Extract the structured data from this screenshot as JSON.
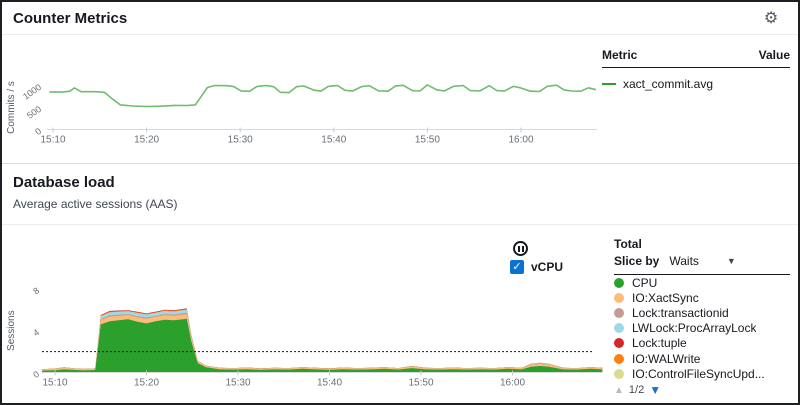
{
  "counter_section": {
    "title": "Counter Metrics",
    "gear_icon": "settings-gear",
    "table": {
      "col_metric": "Metric",
      "col_value": "Value",
      "rows": [
        {
          "label": "xact_commit.avg",
          "color": "#2ca02c"
        }
      ]
    }
  },
  "load_section": {
    "title": "Database load",
    "subtitle": "Average active sessions (AAS)",
    "pause_icon": "pause",
    "vcpu_checkbox_checked": true,
    "vcpu_check_glyph": "✓",
    "vcpu_label": "vCPU",
    "legend": {
      "total_label": "Total",
      "slice_by_label": "Slice by",
      "slice_value": "Waits",
      "caret": "▼",
      "items": [
        {
          "label": "CPU",
          "color": "#2ca02c"
        },
        {
          "label": "IO:XactSync",
          "color": "#ffbb78"
        },
        {
          "label": "Lock:transactionid",
          "color": "#c49c94"
        },
        {
          "label": "LWLock:ProcArrayLock",
          "color": "#9edae5"
        },
        {
          "label": "Lock:tuple",
          "color": "#d62728"
        },
        {
          "label": "IO:WALWrite",
          "color": "#ff7f0e"
        },
        {
          "label": "IO:ControlFileSyncUpd...",
          "color": "#dbdb8d"
        }
      ],
      "pager": {
        "up": "▲",
        "page": "1/2",
        "down": "▼"
      }
    }
  },
  "chart_data": [
    {
      "type": "line",
      "title": "Counter Metrics",
      "ylabel": "Commits / s",
      "ylim": [
        0,
        1250
      ],
      "y_ticks": [
        0,
        500,
        1000
      ],
      "x_tick_minutes": [
        10,
        20,
        30,
        40,
        50,
        60
      ],
      "x_tick_labels": [
        "15:10",
        "15:20",
        "15:30",
        "15:40",
        "15:50",
        "16:00"
      ],
      "grid": false,
      "legend_position": "right-table",
      "series": [
        {
          "name": "xact_commit.avg",
          "color": "#6fbc6f",
          "x": [
            9.6,
            11,
            11.8,
            12.3,
            13,
            14.5,
            15.5,
            16.3,
            17.2,
            18.5,
            20,
            21.5,
            23,
            24.3,
            25.2,
            25.8,
            26.5,
            27.3,
            28.6,
            29.3,
            30.1,
            31,
            31.8,
            32.8,
            33.6,
            34.3,
            35.2,
            36,
            36.8,
            37.8,
            38.6,
            39.4,
            40.4,
            41.2,
            42,
            43,
            43.8,
            44.8,
            45.8,
            46.6,
            47.4,
            48.4,
            49.2,
            50,
            51,
            51.8,
            52.8,
            53.8,
            54.6,
            55.6,
            56.6,
            57.4,
            58.2,
            59.2,
            60,
            61,
            62,
            62.8,
            63.8,
            64.6,
            65.4,
            66.4,
            67.2,
            68
          ],
          "values": [
            855,
            850,
            870,
            945,
            860,
            858,
            845,
            700,
            560,
            535,
            522,
            530,
            548,
            545,
            558,
            740,
            955,
            1000,
            995,
            975,
            878,
            868,
            980,
            1000,
            970,
            845,
            838,
            972,
            988,
            900,
            870,
            980,
            1000,
            890,
            876,
            978,
            993,
            878,
            870,
            992,
            1005,
            883,
            876,
            1013,
            903,
            876,
            982,
            1000,
            883,
            876,
            996,
            886,
            873,
            982,
            943,
            870,
            866,
            982,
            1006,
            900,
            876,
            870,
            948,
            905
          ]
        }
      ]
    },
    {
      "type": "area",
      "title": "Database load",
      "ylabel": "Sessions",
      "ylim": [
        0,
        9.6
      ],
      "y_ticks": [
        0,
        4,
        8
      ],
      "x_tick_minutes": [
        10,
        20,
        30,
        40,
        50,
        60
      ],
      "x_tick_labels": [
        "15:10",
        "15:20",
        "15:30",
        "15:40",
        "15:50",
        "16:00"
      ],
      "grid": false,
      "stacked": true,
      "overlay_line": {
        "name": "vCPU",
        "value": 2,
        "style": "dashed",
        "color": "#16191f"
      },
      "x": [
        8.6,
        10,
        11,
        12,
        13,
        13.8,
        14.4,
        15,
        16,
        17,
        18,
        19,
        20,
        21,
        22,
        23,
        24,
        24.4,
        24.9,
        25.6,
        26.5,
        28,
        29.5,
        31,
        32.5,
        34,
        35.5,
        37,
        38.5,
        40,
        41.5,
        43,
        44.5,
        46,
        47.5,
        49,
        50.5,
        52,
        53.5,
        55,
        56.5,
        58,
        59.5,
        61,
        62,
        63,
        64,
        65.5,
        67,
        68.5,
        69.8
      ],
      "series": [
        {
          "name": "CPU",
          "color": "#2ca02c",
          "values": [
            0.18,
            0.22,
            0.3,
            0.25,
            0.2,
            0.22,
            0.25,
            4.6,
            4.9,
            5.0,
            5.1,
            4.85,
            4.7,
            4.9,
            5.05,
            5.0,
            5.1,
            5.15,
            3.0,
            0.9,
            0.5,
            0.3,
            0.28,
            0.32,
            0.25,
            0.3,
            0.28,
            0.35,
            0.3,
            0.25,
            0.32,
            0.28,
            0.3,
            0.35,
            0.28,
            0.42,
            0.3,
            0.28,
            0.32,
            0.28,
            0.3,
            0.28,
            0.35,
            0.3,
            0.55,
            0.62,
            0.55,
            0.3,
            0.28,
            0.35,
            0.3
          ]
        },
        {
          "name": "IO:XactSync",
          "color": "#ffbb78",
          "values": [
            0.1,
            0.12,
            0.15,
            0.12,
            0.1,
            0.1,
            0.12,
            0.42,
            0.45,
            0.42,
            0.4,
            0.42,
            0.45,
            0.42,
            0.44,
            0.42,
            0.45,
            0.45,
            0.3,
            0.15,
            0.12,
            0.12,
            0.1,
            0.12,
            0.1,
            0.12,
            0.1,
            0.13,
            0.11,
            0.1,
            0.12,
            0.1,
            0.11,
            0.13,
            0.1,
            0.15,
            0.11,
            0.1,
            0.12,
            0.1,
            0.11,
            0.1,
            0.13,
            0.12,
            0.18,
            0.2,
            0.18,
            0.11,
            0.1,
            0.13,
            0.11
          ]
        },
        {
          "name": "Lock:transactionid",
          "color": "#c49c94",
          "values": [
            0,
            0,
            0,
            0,
            0,
            0,
            0,
            0.1,
            0.12,
            0.12,
            0.1,
            0.12,
            0.12,
            0.1,
            0.12,
            0.12,
            0.12,
            0.12,
            0.08,
            0.02,
            0,
            0,
            0,
            0,
            0,
            0,
            0,
            0,
            0,
            0,
            0,
            0,
            0,
            0,
            0,
            0,
            0,
            0,
            0,
            0,
            0,
            0,
            0,
            0,
            0.02,
            0.03,
            0.02,
            0,
            0,
            0,
            0
          ]
        },
        {
          "name": "LWLock:ProcArrayLock",
          "color": "#9edae5",
          "values": [
            0.02,
            0.02,
            0.03,
            0.02,
            0.02,
            0.02,
            0.02,
            0.28,
            0.3,
            0.28,
            0.26,
            0.3,
            0.28,
            0.3,
            0.28,
            0.3,
            0.3,
            0.3,
            0.18,
            0.04,
            0.02,
            0.02,
            0.02,
            0.02,
            0.02,
            0.02,
            0.02,
            0.02,
            0.02,
            0.02,
            0.02,
            0.02,
            0.02,
            0.02,
            0.02,
            0.02,
            0.02,
            0.02,
            0.02,
            0.02,
            0.02,
            0.02,
            0.02,
            0.02,
            0.04,
            0.05,
            0.04,
            0.02,
            0.02,
            0.02,
            0.02
          ]
        },
        {
          "name": "IO:WALWrite",
          "color": "#ff7f0e",
          "values": [
            0.02,
            0.02,
            0.02,
            0.02,
            0.02,
            0.02,
            0.02,
            0.05,
            0.06,
            0.06,
            0.05,
            0.06,
            0.06,
            0.05,
            0.06,
            0.06,
            0.06,
            0.05,
            0.03,
            0.02,
            0.02,
            0.02,
            0.02,
            0.02,
            0.02,
            0.02,
            0.02,
            0.02,
            0.02,
            0.02,
            0.02,
            0.02,
            0.02,
            0.02,
            0.02,
            0.03,
            0.02,
            0.02,
            0.02,
            0.02,
            0.02,
            0.02,
            0.02,
            0.02,
            0.03,
            0.04,
            0.03,
            0.02,
            0.02,
            0.02,
            0.02
          ]
        },
        {
          "name": "Lock:tuple",
          "color": "#d62728",
          "values": [
            0,
            0,
            0,
            0,
            0,
            0,
            0,
            0.05,
            0.06,
            0.05,
            0.05,
            0.06,
            0.05,
            0.06,
            0.05,
            0.06,
            0.06,
            0.06,
            0.03,
            0,
            0,
            0,
            0,
            0,
            0,
            0,
            0,
            0,
            0,
            0,
            0,
            0,
            0,
            0,
            0,
            0,
            0,
            0,
            0,
            0,
            0,
            0,
            0,
            0,
            0,
            0,
            0,
            0,
            0,
            0,
            0
          ]
        }
      ]
    }
  ]
}
